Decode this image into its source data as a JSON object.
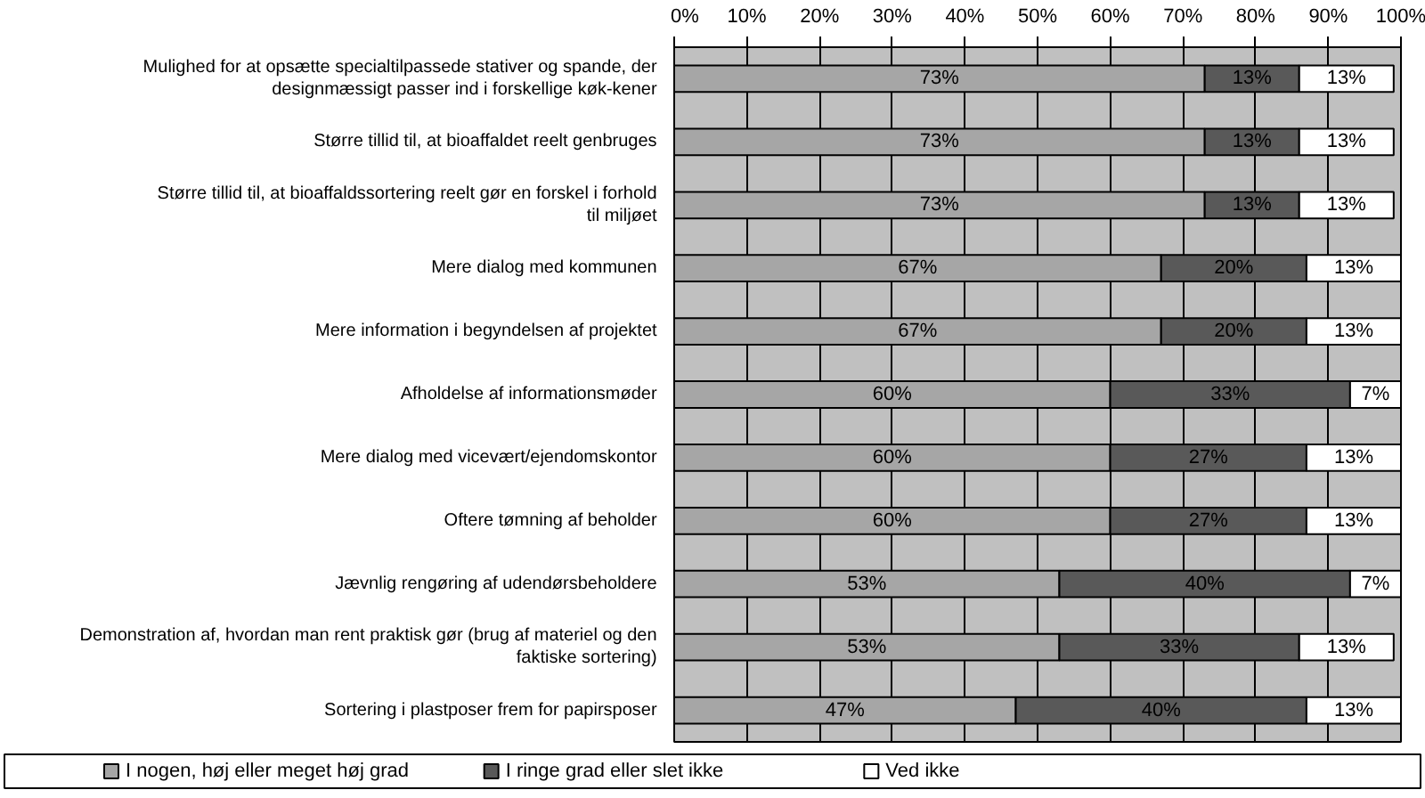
{
  "chart_data": {
    "type": "bar",
    "orientation": "horizontal",
    "stacked": true,
    "grid": "x",
    "legend": "bottom",
    "categories": [
      "Mulighed for at opsætte specialtilpassede stativer og spande, der designmæssigt passer ind i forskellige køk-kener",
      "Større tillid til, at bioaffaldet reelt genbruges",
      "Større tillid til, at bioaffaldssortering reelt gør en forskel i forhold til miljøet",
      "Mere dialog med kommunen",
      "Mere information i begyndelsen af projektet",
      "Afholdelse af informationsmøder",
      "Mere dialog med vicevært/ejendomskontor",
      "Oftere tømning af beholder",
      "Jævnlig rengøring af udendørsbeholdere",
      "Demonstration af, hvordan man rent praktisk gør (brug af materiel og den faktiske sortering)",
      "Sortering i plastposer frem for papirsposer"
    ],
    "series": [
      {
        "name": "I nogen, høj eller meget høj grad",
        "color": "#a6a6a6",
        "values": [
          73,
          73,
          73,
          67,
          67,
          60,
          60,
          60,
          53,
          53,
          47
        ],
        "value_labels": [
          "73%",
          "73%",
          "73%",
          "67%",
          "67%",
          "60%",
          "60%",
          "60%",
          "53%",
          "53%",
          "47%"
        ]
      },
      {
        "name": "I ringe grad eller slet ikke",
        "color": "#595959",
        "values": [
          13,
          13,
          13,
          20,
          20,
          33,
          27,
          27,
          40,
          33,
          40
        ],
        "value_labels": [
          "13%",
          "13%",
          "13%",
          "20%",
          "20%",
          "33%",
          "27%",
          "27%",
          "40%",
          "33%",
          "40%"
        ]
      },
      {
        "name": "Ved ikke",
        "color": "#ffffff",
        "values": [
          13,
          13,
          13,
          13,
          13,
          7,
          13,
          13,
          7,
          13,
          13
        ],
        "value_labels": [
          "13%",
          "13%",
          "13%",
          "13%",
          "13%",
          "7%",
          "13%",
          "13%",
          "7%",
          "13%",
          "13%"
        ]
      }
    ],
    "xlim": [
      0,
      100
    ],
    "xticks": [
      {
        "value": 0,
        "label": "0%"
      },
      {
        "value": 10,
        "label": "10%"
      },
      {
        "value": 20,
        "label": "20%"
      },
      {
        "value": 30,
        "label": "30%"
      },
      {
        "value": 40,
        "label": "40%"
      },
      {
        "value": 50,
        "label": "50%"
      },
      {
        "value": 60,
        "label": "60%"
      },
      {
        "value": 70,
        "label": "70%"
      },
      {
        "value": 80,
        "label": "80%"
      },
      {
        "value": 90,
        "label": "90%"
      },
      {
        "value": 100,
        "label": "100%"
      }
    ]
  }
}
